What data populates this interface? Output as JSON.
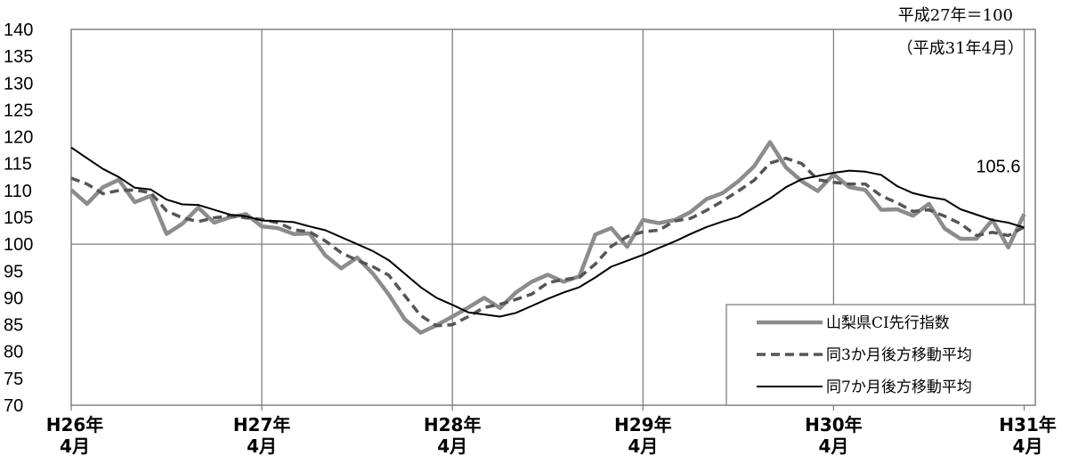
{
  "chart_data": {
    "type": "line",
    "title": "",
    "xlabel": "",
    "ylabel": "",
    "notes": [
      "平成27年＝100",
      "（平成31年4月）"
    ],
    "ylim": [
      70,
      140
    ],
    "yticks": [
      70,
      75,
      80,
      85,
      90,
      95,
      100,
      105,
      110,
      115,
      120,
      125,
      130,
      135,
      140
    ],
    "x_ticks": [
      {
        "index": 0,
        "line1": "H26年",
        "line2": "4月"
      },
      {
        "index": 12,
        "line1": "H27年",
        "line2": "4月"
      },
      {
        "index": 24,
        "line1": "H28年",
        "line2": "4月"
      },
      {
        "index": 36,
        "line1": "H29年",
        "line2": "4月"
      },
      {
        "index": 48,
        "line1": "H30年",
        "line2": "4月"
      },
      {
        "index": 60,
        "line1": "H31年",
        "line2": "4月"
      }
    ],
    "x_count": 61,
    "reference_line": 100,
    "grid": {
      "vertical": true,
      "horizontal": false
    },
    "legend_position": "bottom-right",
    "series": [
      {
        "name": "山梨県CI先行指数",
        "color": "#8c8c8c",
        "dash": "solid",
        "values": [
          110.1,
          107.5,
          110.6,
          112.0,
          107.8,
          109.0,
          101.9,
          103.8,
          106.8,
          104.0,
          105.0,
          105.6,
          103.3,
          103.0,
          101.9,
          102.0,
          97.9,
          95.5,
          97.5,
          94.5,
          90.6,
          86.0,
          83.5,
          84.9,
          86.5,
          88.2,
          90.0,
          88.1,
          91.0,
          93.0,
          94.3,
          93.0,
          94.0,
          101.8,
          103.0,
          99.5,
          104.5,
          103.9,
          104.5,
          106.0,
          108.4,
          109.5,
          111.7,
          114.5,
          119.0,
          114.3,
          111.7,
          109.9,
          113.0,
          110.6,
          110.1,
          106.4,
          106.5,
          105.3,
          107.5,
          102.9,
          101.0,
          101.0,
          104.5,
          99.4,
          105.6
        ]
      },
      {
        "name": "同3か月後方移動平均",
        "color": "#555555",
        "dash": "dashed",
        "values": [
          112.3,
          111.2,
          109.4,
          110.0,
          110.1,
          109.6,
          106.2,
          104.9,
          104.2,
          104.9,
          105.3,
          104.9,
          104.6,
          104.0,
          102.7,
          102.3,
          100.6,
          98.4,
          97.0,
          95.8,
          94.2,
          90.4,
          86.7,
          84.8,
          85.0,
          86.5,
          88.2,
          88.8,
          89.7,
          90.7,
          92.8,
          93.4,
          93.8,
          96.3,
          99.6,
          101.4,
          102.3,
          102.6,
          104.3,
          104.8,
          106.3,
          108.0,
          109.9,
          111.9,
          115.1,
          116.0,
          115.0,
          112.0,
          111.5,
          111.2,
          111.2,
          109.0,
          107.7,
          106.1,
          106.4,
          105.2,
          103.8,
          101.6,
          102.2,
          101.6,
          103.2
        ]
      },
      {
        "name": "同7か月後方移動平均",
        "color": "#000000",
        "dash": "solid",
        "values": [
          118.0,
          116.0,
          114.0,
          112.5,
          110.5,
          110.2,
          108.3,
          107.4,
          107.3,
          106.4,
          105.5,
          105.2,
          104.4,
          104.3,
          104.1,
          103.3,
          102.6,
          101.3,
          100.0,
          98.7,
          97.0,
          94.5,
          92.0,
          90.0,
          88.7,
          87.3,
          86.9,
          86.5,
          87.2,
          88.5,
          89.8,
          91.0,
          92.0,
          93.8,
          95.8,
          96.9,
          98.0,
          99.3,
          100.5,
          101.9,
          103.2,
          104.2,
          105.1,
          106.8,
          108.5,
          110.6,
          112.1,
          112.7,
          113.3,
          113.7,
          113.5,
          112.9,
          110.8,
          109.5,
          108.8,
          108.3,
          106.5,
          105.5,
          104.5,
          104.0,
          103.1
        ]
      }
    ],
    "last_value_label": "105.6"
  }
}
